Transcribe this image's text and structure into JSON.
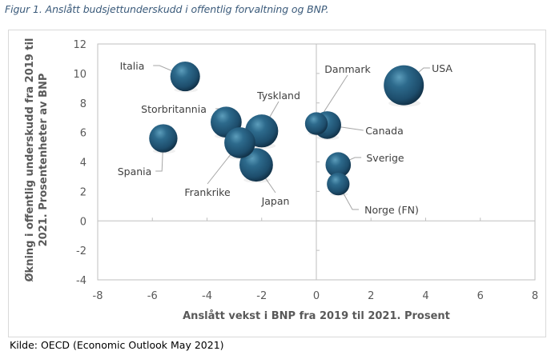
{
  "figure": {
    "title": "Figur 1. Anslått budsjettunderskudd i offentlig forvaltning og BNP.",
    "source": "Kilde: OECD (Economic Outlook May 2021)"
  },
  "chart_data": {
    "type": "scatter",
    "subtype": "bubble",
    "title": "",
    "xlabel": "Anslått vekst i BNP fra 2019 til 2021. Prosent",
    "ylabel_lines": [
      "Økning i offentlig underskudd  fra 2019 til",
      "2021. Prosentenheter av BNP"
    ],
    "xlim": [
      -8,
      8
    ],
    "ylim": [
      -4,
      12
    ],
    "xticks": [
      -8,
      -6,
      -4,
      -2,
      0,
      2,
      4,
      6,
      8
    ],
    "yticks": [
      -4,
      -2,
      0,
      2,
      4,
      6,
      8,
      10,
      12
    ],
    "grid": false,
    "legend": "none",
    "bubble_color": "#24587a",
    "points": [
      {
        "label": "Italia",
        "x": -4.8,
        "y": 9.8,
        "size": 0.55
      },
      {
        "label": "Spania",
        "x": -5.6,
        "y": 5.6,
        "size": 0.5
      },
      {
        "label": "Storbritannia",
        "x": -3.3,
        "y": 6.7,
        "size": 0.6
      },
      {
        "label": "Tyskland",
        "x": -2.0,
        "y": 6.1,
        "size": 0.68
      },
      {
        "label": "Frankrike",
        "x": -2.8,
        "y": 5.3,
        "size": 0.6
      },
      {
        "label": "Japan",
        "x": -2.2,
        "y": 3.8,
        "size": 0.7
      },
      {
        "label": "Danmark",
        "x": 0.0,
        "y": 6.6,
        "size": 0.32
      },
      {
        "label": "Canada",
        "x": 0.4,
        "y": 6.5,
        "size": 0.48
      },
      {
        "label": "USA",
        "x": 3.2,
        "y": 9.2,
        "size": 1.0
      },
      {
        "label": "Sverige",
        "x": 0.8,
        "y": 3.8,
        "size": 0.4
      },
      {
        "label": "Norge (FN)",
        "x": 0.8,
        "y": 2.5,
        "size": 0.32
      }
    ]
  }
}
